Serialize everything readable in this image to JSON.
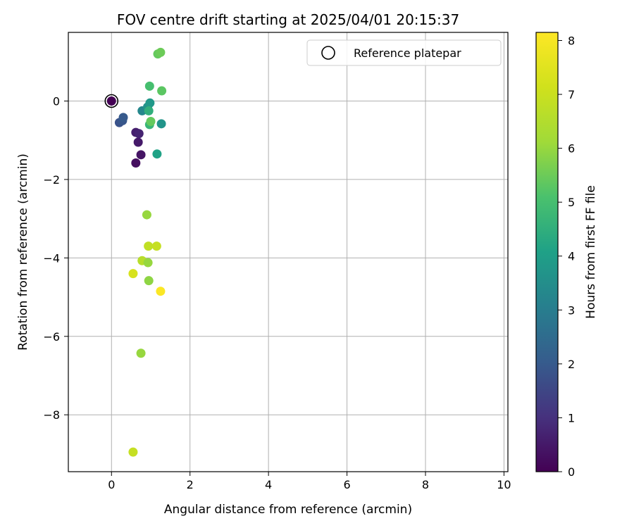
{
  "chart_data": {
    "type": "scatter",
    "title": "FOV centre drift starting at 2025/04/01 20:15:37",
    "xlabel": "Angular distance from reference (arcmin)",
    "ylabel": "Rotation from reference (arcmin)",
    "xlim": [
      -1.1,
      10.1
    ],
    "ylim": [
      -9.45,
      1.75
    ],
    "xticks": [
      0,
      2,
      4,
      6,
      8,
      10
    ],
    "yticks": [
      0,
      -2,
      -4,
      -6,
      -8
    ],
    "grid": true,
    "legend": {
      "placement": "top-right",
      "entries": [
        "Reference platepar"
      ]
    },
    "colorbar": {
      "label": "Hours from first FF file",
      "colormap": "viridis",
      "range": [
        0,
        8.15
      ],
      "ticks": [
        0,
        1,
        2,
        3,
        4,
        5,
        6,
        7,
        8
      ]
    },
    "reference": {
      "x": 0,
      "y": 0
    },
    "points": [
      {
        "x": 0.0,
        "y": 0.0,
        "h": 0.0
      },
      {
        "x": 0.62,
        "y": -1.58,
        "h": 0.3
      },
      {
        "x": 0.75,
        "y": -1.37,
        "h": 0.4
      },
      {
        "x": 0.68,
        "y": -1.05,
        "h": 0.5
      },
      {
        "x": 0.62,
        "y": -0.8,
        "h": 0.6
      },
      {
        "x": 0.7,
        "y": -0.83,
        "h": 0.7
      },
      {
        "x": 0.2,
        "y": -0.55,
        "h": 1.8
      },
      {
        "x": 0.28,
        "y": -0.5,
        "h": 1.9
      },
      {
        "x": 0.3,
        "y": -0.42,
        "h": 2.0
      },
      {
        "x": 0.78,
        "y": -0.25,
        "h": 3.3
      },
      {
        "x": 0.92,
        "y": -0.15,
        "h": 3.6
      },
      {
        "x": 0.98,
        "y": -0.05,
        "h": 3.8
      },
      {
        "x": 1.27,
        "y": -0.58,
        "h": 3.7
      },
      {
        "x": 1.16,
        "y": -1.35,
        "h": 4.1
      },
      {
        "x": 0.95,
        "y": -0.25,
        "h": 4.5
      },
      {
        "x": 0.97,
        "y": -0.6,
        "h": 4.7
      },
      {
        "x": 1.0,
        "y": -0.52,
        "h": 5.4
      },
      {
        "x": 0.97,
        "y": 0.38,
        "h": 5.0
      },
      {
        "x": 1.28,
        "y": 0.26,
        "h": 5.3
      },
      {
        "x": 1.18,
        "y": 1.2,
        "h": 5.4
      },
      {
        "x": 1.25,
        "y": 1.24,
        "h": 5.5
      },
      {
        "x": 0.9,
        "y": -2.9,
        "h": 6.0
      },
      {
        "x": 0.94,
        "y": -3.7,
        "h": 6.8
      },
      {
        "x": 1.15,
        "y": -3.7,
        "h": 6.9
      },
      {
        "x": 0.78,
        "y": -4.07,
        "h": 6.6
      },
      {
        "x": 0.93,
        "y": -4.12,
        "h": 6.0
      },
      {
        "x": 0.95,
        "y": -4.58,
        "h": 5.9
      },
      {
        "x": 0.55,
        "y": -4.4,
        "h": 7.3
      },
      {
        "x": 1.25,
        "y": -4.85,
        "h": 8.1
      },
      {
        "x": 0.75,
        "y": -6.43,
        "h": 6.0
      },
      {
        "x": 0.55,
        "y": -8.95,
        "h": 6.9
      }
    ]
  }
}
